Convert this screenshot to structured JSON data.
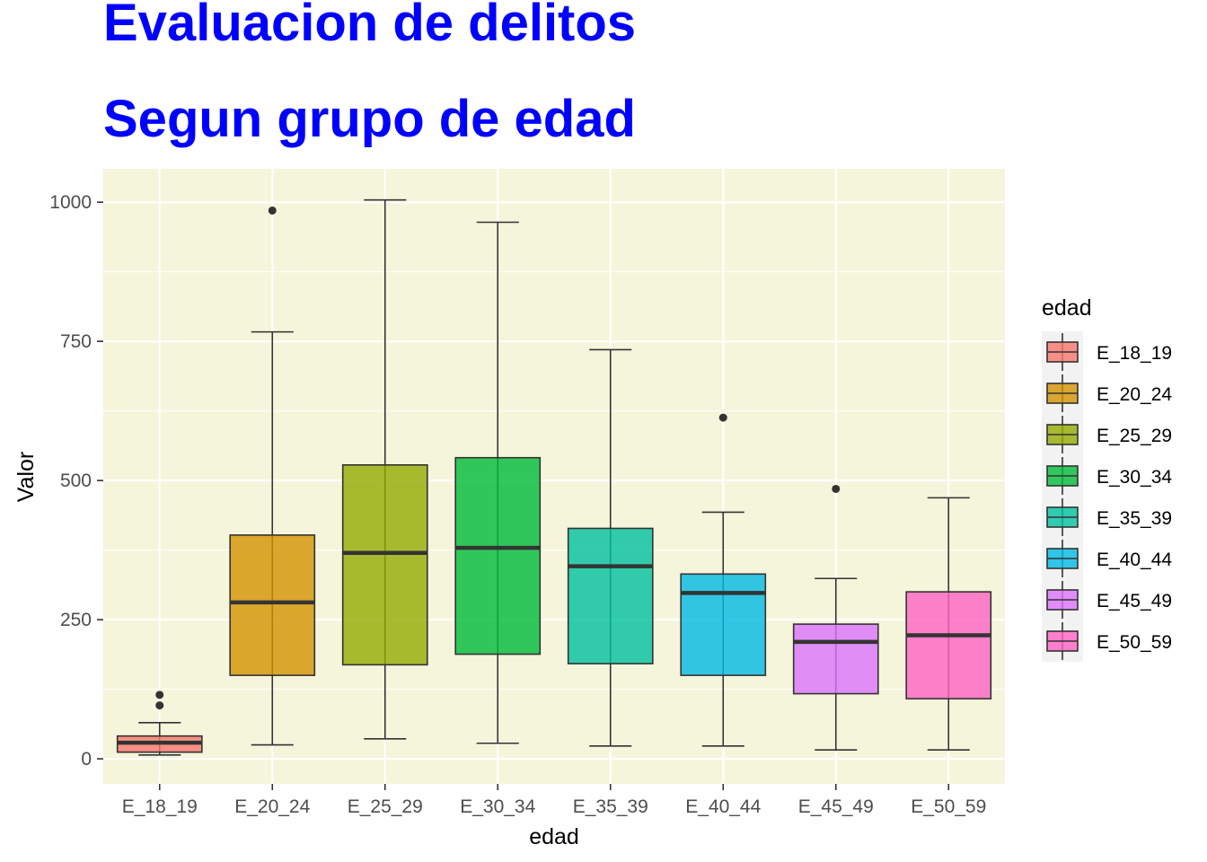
{
  "chart_data": {
    "type": "boxplot",
    "title": "Evaluacion de delitos",
    "subtitle": "Segun grupo de edad",
    "xlabel": "edad",
    "ylabel": "Valor",
    "ylim": [
      -45,
      1060
    ],
    "yticks": [
      0,
      250,
      500,
      750,
      1000
    ],
    "grid": true,
    "panel_background": "#f5f5dc",
    "legend": {
      "title": "edad",
      "placement": "right"
    },
    "categories": [
      "E_18_19",
      "E_20_24",
      "E_25_29",
      "E_30_34",
      "E_35_39",
      "E_40_44",
      "E_45_49",
      "E_50_59"
    ],
    "colors": [
      "#f8766d",
      "#d39200",
      "#93aa00",
      "#00ba38",
      "#00c19f",
      "#00b9e3",
      "#db72fb",
      "#ff61c3"
    ],
    "boxes": [
      {
        "category": "E_18_19",
        "min": 7,
        "q1": 12,
        "median": 29,
        "q3": 41,
        "max": 65,
        "outliers": [
          96,
          115
        ]
      },
      {
        "category": "E_20_24",
        "min": 25,
        "q1": 150,
        "median": 281,
        "q3": 402,
        "max": 767,
        "outliers": [
          985
        ]
      },
      {
        "category": "E_25_29",
        "min": 36,
        "q1": 169,
        "median": 370,
        "q3": 528,
        "max": 1004,
        "outliers": []
      },
      {
        "category": "E_30_34",
        "min": 28,
        "q1": 188,
        "median": 379,
        "q3": 541,
        "max": 964,
        "outliers": []
      },
      {
        "category": "E_35_39",
        "min": 23,
        "q1": 171,
        "median": 346,
        "q3": 414,
        "max": 735,
        "outliers": []
      },
      {
        "category": "E_40_44",
        "min": 23,
        "q1": 150,
        "median": 298,
        "q3": 332,
        "max": 443,
        "outliers": [
          613
        ]
      },
      {
        "category": "E_45_49",
        "min": 16,
        "q1": 117,
        "median": 210,
        "q3": 242,
        "max": 324,
        "outliers": [
          485
        ]
      },
      {
        "category": "E_50_59",
        "min": 16,
        "q1": 108,
        "median": 222,
        "q3": 300,
        "max": 469,
        "outliers": []
      }
    ]
  }
}
